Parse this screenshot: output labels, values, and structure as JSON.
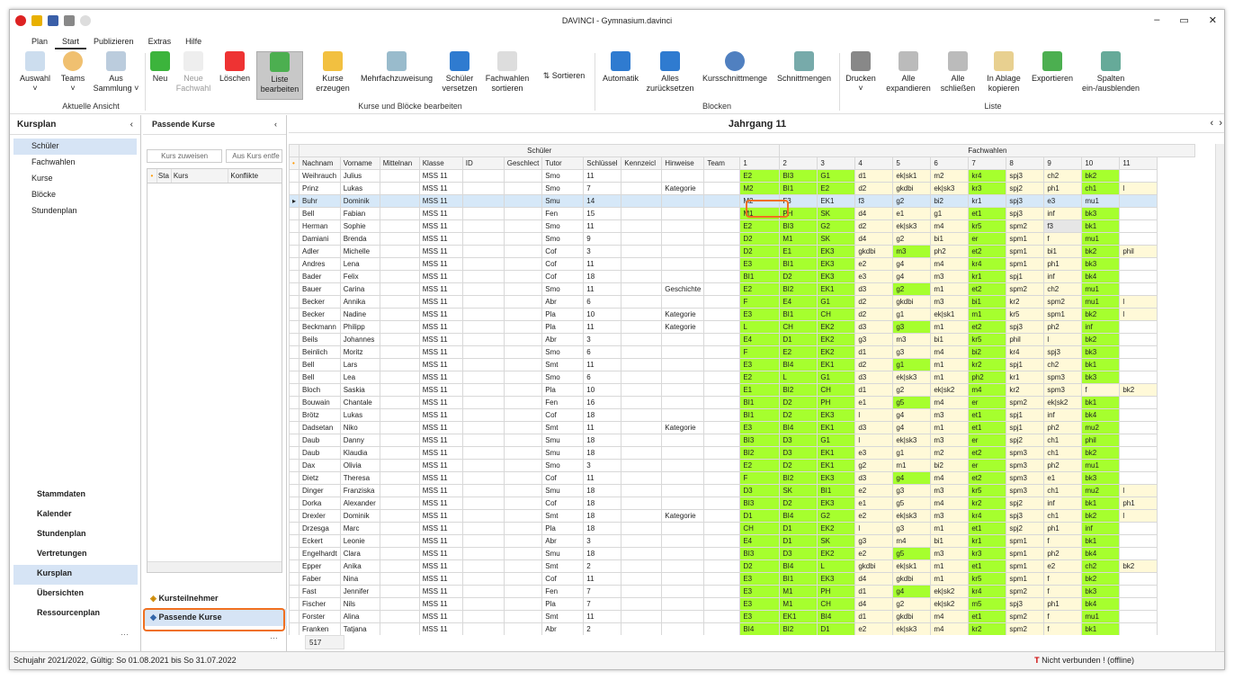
{
  "window": {
    "title": "DAVINCI - Gymnasium.davinci"
  },
  "menu": [
    "Plan",
    "Start",
    "Publizieren",
    "Extras",
    "Hilfe"
  ],
  "ribbon": {
    "auswahl": "Auswahl",
    "teams": "Teams",
    "aus": "Aus",
    "sammlung": "Sammlung",
    "group_ansicht": "Aktuelle Ansicht",
    "neu": "Neu",
    "neu2": "Neue",
    "fachwahl": "Fachwahl",
    "loeschen": "Löschen",
    "liste": "Liste",
    "bearbeiten": "bearbeiten",
    "kurse": "Kurse",
    "erzeugen": "erzeugen",
    "mehrfach": "Mehrfachzuweisung",
    "schueler": "Schüler",
    "versetzen": "versetzen",
    "fachwahlen": "Fachwahlen",
    "sortieren": "sortieren",
    "sortieren2": "Sortieren",
    "group_kurse": "Kurse und Blöcke bearbeiten",
    "automatik": "Automatik",
    "alles": "Alles",
    "zurueck": "zurücksetzen",
    "kursschnitt": "Kursschnittmenge",
    "schnitt": "Schnittmengen",
    "group_blocken": "Blocken",
    "drucken": "Drucken",
    "alle": "Alle",
    "expandieren": "expandieren",
    "alle2": "Alle",
    "schliessen": "schließen",
    "inablage": "In Ablage",
    "kopieren": "kopieren",
    "export": "Exportieren",
    "spalten": "Spalten",
    "einaus": "ein-/ausblenden",
    "group_liste": "Liste"
  },
  "nav": {
    "header": "Kursplan",
    "items": [
      "Schüler",
      "Fachwahlen",
      "Kurse",
      "Blöcke",
      "Stundenplan"
    ],
    "big": [
      "Stammdaten",
      "Kalender",
      "Stundenplan",
      "Vertretungen",
      "Kursplan",
      "Übersichten",
      "Ressourcenplan"
    ]
  },
  "mid": {
    "title": "Passende Kurse",
    "assign": "Kurs zuweisen",
    "remove": "Aus Kurs entfe",
    "cols": [
      "Sta",
      "Kurs",
      "Konflikte"
    ],
    "tab1": "Kursteilnehmer",
    "tab2": "Passende Kurse"
  },
  "main": {
    "title": "Jahrgang 11",
    "group_schueler": "Schüler",
    "group_fachwahlen": "Fachwahlen",
    "count": "517",
    "columns": [
      "Nachnam",
      "Vorname",
      "Mittelnan",
      "Klasse",
      "ID",
      "Geschlect",
      "Tutor",
      "Schlüssel",
      "Kennzeicl",
      "Hinweise",
      "Team",
      "1",
      "2",
      "3",
      "4",
      "5",
      "6",
      "7",
      "8",
      "9",
      "10",
      "11"
    ],
    "rows": [
      {
        "n": "Weihrauch",
        "v": "Julius",
        "k": "MSS 11",
        "t": "Smo",
        "s": "11",
        "h": "",
        "f": [
          "E2",
          "BI3",
          "G1",
          "d1",
          "ek|sk1",
          "m2",
          "kr4",
          "spj3",
          "ch2",
          "bk2",
          ""
        ]
      },
      {
        "n": "Prinz",
        "v": "Lukas",
        "k": "MSS 11",
        "t": "Smo",
        "s": "7",
        "h": "Kategorie",
        "f": [
          "M2",
          "BI1",
          "E2",
          "d2",
          "gkdbi",
          "ek|sk3",
          "kr3",
          "spj2",
          "ph1",
          "ch1",
          "l"
        ]
      },
      {
        "n": "Buhr",
        "v": "Dominik",
        "k": "MSS 11",
        "t": "Smu",
        "s": "14",
        "h": "",
        "f": [
          "M2",
          "F3",
          "EK1",
          "f3",
          "g2",
          "bi2",
          "kr1",
          "spj3",
          "e3",
          "mu1",
          ""
        ],
        "sel": true
      },
      {
        "n": "Bell",
        "v": "Fabian",
        "k": "MSS 11",
        "t": "Fen",
        "s": "15",
        "h": "",
        "f": [
          "M1",
          "PH",
          "SK",
          "d4",
          "e1",
          "g1",
          "et1",
          "spj3",
          "inf",
          "bk3",
          ""
        ]
      },
      {
        "n": "Herman",
        "v": "Sophie",
        "k": "MSS 11",
        "t": "Smo",
        "s": "11",
        "h": "",
        "f": [
          "E2",
          "BI3",
          "G2",
          "d2",
          "ek|sk3",
          "m4",
          "kr5",
          "spm2",
          "f3",
          "bk1",
          ""
        ]
      },
      {
        "n": "Damiani",
        "v": "Brenda",
        "k": "MSS 11",
        "t": "Smo",
        "s": "9",
        "h": "",
        "f": [
          "D2",
          "M1",
          "SK",
          "d4",
          "g2",
          "bi1",
          "er",
          "spm1",
          "f",
          "mu1",
          ""
        ]
      },
      {
        "n": "Adler",
        "v": "Michelle",
        "k": "MSS 11",
        "t": "Cof",
        "s": "3",
        "h": "",
        "f": [
          "D2",
          "E1",
          "EK3",
          "gkdbi",
          "m3",
          "ph2",
          "et2",
          "spm1",
          "bi1",
          "bk2",
          "phil"
        ]
      },
      {
        "n": "Andres",
        "v": "Lena",
        "k": "MSS 11",
        "t": "Cof",
        "s": "11",
        "h": "",
        "f": [
          "E3",
          "BI1",
          "EK3",
          "e2",
          "g4",
          "m4",
          "kr4",
          "spm1",
          "ph1",
          "bk3",
          ""
        ]
      },
      {
        "n": "Bader",
        "v": "Felix",
        "k": "MSS 11",
        "t": "Cof",
        "s": "18",
        "h": "",
        "f": [
          "BI1",
          "D2",
          "EK3",
          "e3",
          "g4",
          "m3",
          "kr1",
          "spj1",
          "inf",
          "bk4",
          ""
        ]
      },
      {
        "n": "Bauer",
        "v": "Carina",
        "k": "MSS 11",
        "t": "Smo",
        "s": "11",
        "h": "Geschichte",
        "f": [
          "E2",
          "BI2",
          "EK1",
          "d3",
          "g2",
          "m1",
          "et2",
          "spm2",
          "ch2",
          "mu1",
          ""
        ]
      },
      {
        "n": "Becker",
        "v": "Annika",
        "k": "MSS 11",
        "t": "Abr",
        "s": "6",
        "h": "",
        "f": [
          "F",
          "E4",
          "G1",
          "d2",
          "gkdbi",
          "m3",
          "bi1",
          "kr2",
          "spm2",
          "mu1",
          "l"
        ]
      },
      {
        "n": "Becker",
        "v": "Nadine",
        "k": "MSS 11",
        "t": "Pla",
        "s": "10",
        "h": "Kategorie",
        "f": [
          "E3",
          "BI1",
          "CH",
          "d2",
          "g1",
          "ek|sk1",
          "m1",
          "kr5",
          "spm1",
          "bk2",
          "l"
        ]
      },
      {
        "n": "Beckmann",
        "v": "Philipp",
        "k": "MSS 11",
        "t": "Pla",
        "s": "11",
        "h": "Kategorie",
        "f": [
          "L",
          "CH",
          "EK2",
          "d3",
          "g3",
          "m1",
          "et2",
          "spj3",
          "ph2",
          "inf",
          ""
        ]
      },
      {
        "n": "Beils",
        "v": "Johannes",
        "k": "MSS 11",
        "t": "Abr",
        "s": "3",
        "h": "",
        "f": [
          "E4",
          "D1",
          "EK2",
          "g3",
          "m3",
          "bi1",
          "kr5",
          "phil",
          "l",
          "bk2",
          ""
        ]
      },
      {
        "n": "Beinlich",
        "v": "Moritz",
        "k": "MSS 11",
        "t": "Smo",
        "s": "6",
        "h": "",
        "f": [
          "F",
          "E2",
          "EK2",
          "d1",
          "g3",
          "m4",
          "bi2",
          "kr4",
          "spj3",
          "bk3",
          ""
        ]
      },
      {
        "n": "Bell",
        "v": "Lars",
        "k": "MSS 11",
        "t": "Smt",
        "s": "11",
        "h": "",
        "f": [
          "E3",
          "BI4",
          "EK1",
          "d2",
          "g1",
          "m1",
          "kr2",
          "spj1",
          "ch2",
          "bk1",
          ""
        ]
      },
      {
        "n": "Bell",
        "v": "Lea",
        "k": "MSS 11",
        "t": "Smo",
        "s": "6",
        "h": "",
        "f": [
          "E2",
          "L",
          "G1",
          "d3",
          "ek|sk3",
          "m1",
          "ph2",
          "kr1",
          "spm3",
          "bk3",
          ""
        ]
      },
      {
        "n": "Bloch",
        "v": "Saskia",
        "k": "MSS 11",
        "t": "Pla",
        "s": "10",
        "h": "",
        "f": [
          "E1",
          "BI2",
          "CH",
          "d1",
          "g2",
          "ek|sk2",
          "m4",
          "kr2",
          "spm3",
          "f",
          "bk2"
        ]
      },
      {
        "n": "Bouwain",
        "v": "Chantale",
        "k": "MSS 11",
        "t": "Fen",
        "s": "16",
        "h": "",
        "f": [
          "BI1",
          "D2",
          "PH",
          "e1",
          "g5",
          "m4",
          "er",
          "spm2",
          "ek|sk2",
          "bk1",
          ""
        ]
      },
      {
        "n": "Brötz",
        "v": "Lukas",
        "k": "MSS 11",
        "t": "Cof",
        "s": "18",
        "h": "",
        "f": [
          "BI1",
          "D2",
          "EK3",
          "l",
          "g4",
          "m3",
          "et1",
          "spj1",
          "inf",
          "bk4",
          ""
        ]
      },
      {
        "n": "Dadsetan",
        "v": "Niko",
        "k": "MSS 11",
        "t": "Smt",
        "s": "11",
        "h": "Kategorie",
        "f": [
          "E3",
          "BI4",
          "EK1",
          "d3",
          "g4",
          "m1",
          "et1",
          "spj1",
          "ph2",
          "mu2",
          ""
        ]
      },
      {
        "n": "Daub",
        "v": "Danny",
        "k": "MSS 11",
        "t": "Smu",
        "s": "18",
        "h": "",
        "f": [
          "BI3",
          "D3",
          "G1",
          "l",
          "ek|sk3",
          "m3",
          "er",
          "spj2",
          "ch1",
          "phil",
          ""
        ]
      },
      {
        "n": "Daub",
        "v": "Klaudia",
        "k": "MSS 11",
        "t": "Smu",
        "s": "18",
        "h": "",
        "f": [
          "BI2",
          "D3",
          "EK1",
          "e3",
          "g1",
          "m2",
          "et2",
          "spm3",
          "ch1",
          "bk2",
          ""
        ]
      },
      {
        "n": "Dax",
        "v": "Olivia",
        "k": "MSS 11",
        "t": "Smo",
        "s": "3",
        "h": "",
        "f": [
          "E2",
          "D2",
          "EK1",
          "g2",
          "m1",
          "bi2",
          "er",
          "spm3",
          "ph2",
          "mu1",
          ""
        ]
      },
      {
        "n": "Dietz",
        "v": "Theresa",
        "k": "MSS 11",
        "t": "Cof",
        "s": "11",
        "h": "",
        "f": [
          "F",
          "BI2",
          "EK3",
          "d3",
          "g4",
          "m4",
          "et2",
          "spm3",
          "e1",
          "bk3",
          ""
        ]
      },
      {
        "n": "Dinger",
        "v": "Franziska",
        "k": "MSS 11",
        "t": "Smu",
        "s": "18",
        "h": "",
        "f": [
          "D3",
          "SK",
          "BI1",
          "e2",
          "g3",
          "m3",
          "kr5",
          "spm3",
          "ch1",
          "mu2",
          "l"
        ]
      },
      {
        "n": "Dorka",
        "v": "Alexander",
        "k": "MSS 11",
        "t": "Cof",
        "s": "18",
        "h": "",
        "f": [
          "BI3",
          "D2",
          "EK3",
          "e1",
          "g5",
          "m4",
          "kr2",
          "spj2",
          "inf",
          "bk1",
          "ph1"
        ]
      },
      {
        "n": "Drexler",
        "v": "Dominik",
        "k": "MSS 11",
        "t": "Smt",
        "s": "18",
        "h": "Kategorie",
        "f": [
          "D1",
          "BI4",
          "G2",
          "e2",
          "ek|sk3",
          "m3",
          "kr4",
          "spj3",
          "ch1",
          "bk2",
          "l"
        ]
      },
      {
        "n": "Drzesga",
        "v": "Marc",
        "k": "MSS 11",
        "t": "Pla",
        "s": "18",
        "h": "",
        "f": [
          "CH",
          "D1",
          "EK2",
          "l",
          "g3",
          "m1",
          "et1",
          "spj2",
          "ph1",
          "inf",
          ""
        ]
      },
      {
        "n": "Eckert",
        "v": "Leonie",
        "k": "MSS 11",
        "t": "Abr",
        "s": "3",
        "h": "",
        "f": [
          "E4",
          "D1",
          "SK",
          "g3",
          "m4",
          "bi1",
          "kr1",
          "spm1",
          "f",
          "bk1",
          ""
        ]
      },
      {
        "n": "Engelhardt",
        "v": "Clara",
        "k": "MSS 11",
        "t": "Smu",
        "s": "18",
        "h": "",
        "f": [
          "BI3",
          "D3",
          "EK2",
          "e2",
          "g5",
          "m3",
          "kr3",
          "spm1",
          "ph2",
          "bk4",
          ""
        ]
      },
      {
        "n": "Epper",
        "v": "Anika",
        "k": "MSS 11",
        "t": "Smt",
        "s": "2",
        "h": "",
        "f": [
          "D2",
          "BI4",
          "L",
          "gkdbi",
          "ek|sk1",
          "m1",
          "et1",
          "spm1",
          "e2",
          "ch2",
          "bk2"
        ]
      },
      {
        "n": "Faber",
        "v": "Nina",
        "k": "MSS 11",
        "t": "Cof",
        "s": "11",
        "h": "",
        "f": [
          "E3",
          "BI1",
          "EK3",
          "d4",
          "gkdbi",
          "m1",
          "kr5",
          "spm1",
          "f",
          "bk2",
          ""
        ]
      },
      {
        "n": "Fast",
        "v": "Jennifer",
        "k": "MSS 11",
        "t": "Fen",
        "s": "7",
        "h": "",
        "f": [
          "E3",
          "M1",
          "PH",
          "d1",
          "g4",
          "ek|sk2",
          "kr4",
          "spm2",
          "f",
          "bk3",
          ""
        ]
      },
      {
        "n": "Fischer",
        "v": "Nils",
        "k": "MSS 11",
        "t": "Pla",
        "s": "7",
        "h": "",
        "f": [
          "E3",
          "M1",
          "CH",
          "d4",
          "g2",
          "ek|sk2",
          "m5",
          "spj3",
          "ph1",
          "bk4",
          ""
        ]
      },
      {
        "n": "Forster",
        "v": "Alina",
        "k": "MSS 11",
        "t": "Smt",
        "s": "11",
        "h": "",
        "f": [
          "E3",
          "EK1",
          "BI4",
          "d1",
          "gkdbi",
          "m4",
          "et1",
          "spm2",
          "f",
          "mu1",
          ""
        ]
      },
      {
        "n": "Franken",
        "v": "Tatjana",
        "k": "MSS 11",
        "t": "Abr",
        "s": "2",
        "h": "",
        "f": [
          "BI4",
          "BI2",
          "D1",
          "e2",
          "ek|sk3",
          "m4",
          "kr2",
          "spm2",
          "f",
          "bk1",
          ""
        ]
      }
    ]
  },
  "status": {
    "left": "Schujahr 2021/2022, Gültig: So 01.08.2021 bis So 31.07.2022",
    "right": "Nicht verbunden ! (offline)"
  }
}
